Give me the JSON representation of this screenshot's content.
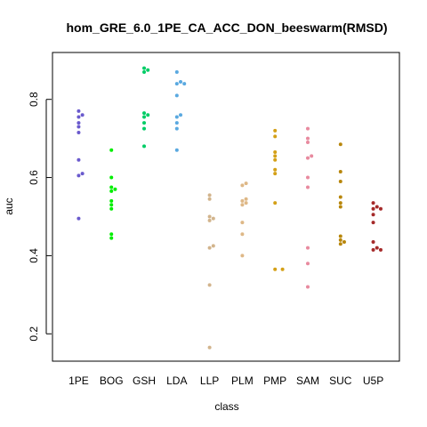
{
  "chart_data": {
    "type": "scatter",
    "subtype": "beeswarm",
    "title": "hom_GRE_6.0_1PE_CA_ACC_DON_beeswarm(RMSD)",
    "xlabel": "class",
    "ylabel": "auc",
    "ylim": [
      0.13,
      0.92
    ],
    "y_ticks": [
      "0.2",
      "0.4",
      "0.6",
      "0.8"
    ],
    "grid": false,
    "legend": "none",
    "categories": [
      "1PE",
      "BOG",
      "GSH",
      "LDA",
      "LLP",
      "PLM",
      "PMP",
      "SAM",
      "SUC",
      "U5P"
    ],
    "colors": [
      "#6a5acd",
      "#00ee00",
      "#00cd66",
      "#5aa9e0",
      "#d2b48c",
      "#deb887",
      "#d4a017",
      "#e88a9f",
      "#b8860b",
      "#a52a2a"
    ],
    "groups": [
      {
        "class": "1PE",
        "values": [
          0.77,
          0.76,
          0.755,
          0.74,
          0.73,
          0.715,
          0.645,
          0.61,
          0.605,
          0.495
        ]
      },
      {
        "class": "BOG",
        "values": [
          0.67,
          0.6,
          0.575,
          0.57,
          0.565,
          0.54,
          0.53,
          0.52,
          0.455,
          0.445
        ]
      },
      {
        "class": "GSH",
        "values": [
          0.88,
          0.875,
          0.87,
          0.765,
          0.76,
          0.755,
          0.74,
          0.725,
          0.68
        ]
      },
      {
        "class": "LDA",
        "values": [
          0.87,
          0.845,
          0.84,
          0.84,
          0.81,
          0.76,
          0.755,
          0.74,
          0.725,
          0.67
        ]
      },
      {
        "class": "LLP",
        "values": [
          0.555,
          0.545,
          0.5,
          0.495,
          0.49,
          0.425,
          0.42,
          0.325,
          0.165
        ]
      },
      {
        "class": "PLM",
        "values": [
          0.585,
          0.58,
          0.545,
          0.54,
          0.535,
          0.53,
          0.485,
          0.455,
          0.4
        ]
      },
      {
        "class": "PMP",
        "values": [
          0.72,
          0.705,
          0.665,
          0.655,
          0.645,
          0.62,
          0.61,
          0.535,
          0.365,
          0.365
        ]
      },
      {
        "class": "SAM",
        "values": [
          0.725,
          0.7,
          0.69,
          0.655,
          0.65,
          0.6,
          0.575,
          0.42,
          0.38,
          0.32
        ]
      },
      {
        "class": "SUC",
        "values": [
          0.685,
          0.615,
          0.59,
          0.55,
          0.535,
          0.525,
          0.45,
          0.44,
          0.435,
          0.43
        ]
      },
      {
        "class": "U5P",
        "values": [
          0.535,
          0.525,
          0.52,
          0.52,
          0.505,
          0.485,
          0.435,
          0.42,
          0.415,
          0.415
        ]
      }
    ]
  }
}
